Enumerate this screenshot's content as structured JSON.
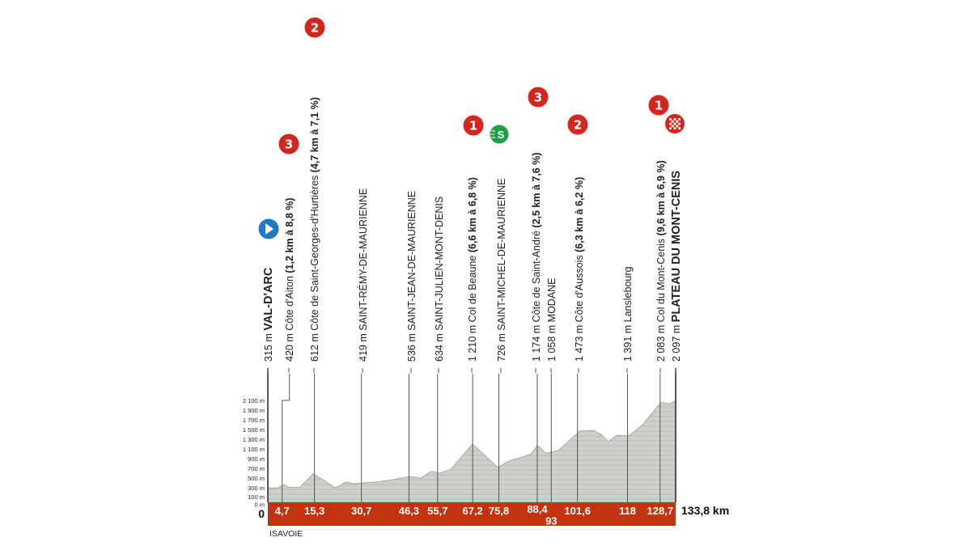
{
  "chart_data": {
    "type": "area",
    "title": "",
    "xlabel": "",
    "ylabel": "",
    "x_unit": "km",
    "xlim": [
      0,
      133.8
    ],
    "ylim": [
      0,
      2100
    ],
    "grid": false,
    "colors": {
      "profile_fill": "#cfcfcc",
      "profile_stroke": "#9a9a98",
      "band": "#c4330f",
      "mountain_badge": "#d6251e",
      "start": "#1f7ac2",
      "sprint": "#1fa046"
    },
    "y_ticks": [
      "0 m",
      "100 m",
      "300 m",
      "500 m",
      "700 m",
      "900 m",
      "1 100 m",
      "1 300 m",
      "1 500 m",
      "1 700 m",
      "1 900 m",
      "2 100 m"
    ],
    "y_tick_values": [
      0,
      100,
      300,
      500,
      700,
      900,
      1100,
      1300,
      1500,
      1700,
      1900,
      2100
    ],
    "profile": [
      [
        0,
        300
      ],
      [
        3.3,
        295
      ],
      [
        5.1,
        370
      ],
      [
        6.9,
        310
      ],
      [
        10.5,
        310
      ],
      [
        14.9,
        590
      ],
      [
        19.3,
        420
      ],
      [
        22,
        300
      ],
      [
        23.8,
        350
      ],
      [
        25.5,
        420
      ],
      [
        28.2,
        380
      ],
      [
        30.9,
        400
      ],
      [
        36,
        420
      ],
      [
        40.4,
        460
      ],
      [
        46.6,
        530
      ],
      [
        50.2,
        500
      ],
      [
        53.7,
        640
      ],
      [
        56.4,
        600
      ],
      [
        60,
        680
      ],
      [
        67.2,
        1200
      ],
      [
        71.5,
        950
      ],
      [
        75.4,
        720
      ],
      [
        79.4,
        860
      ],
      [
        83.8,
        940
      ],
      [
        86.5,
        1000
      ],
      [
        88.4,
        1174
      ],
      [
        91.3,
        1010
      ],
      [
        95.3,
        1070
      ],
      [
        102.4,
        1470
      ],
      [
        106.9,
        1480
      ],
      [
        109.5,
        1390
      ],
      [
        111.8,
        1250
      ],
      [
        114.4,
        1380
      ],
      [
        118.4,
        1370
      ],
      [
        122.8,
        1590
      ],
      [
        129,
        2060
      ],
      [
        131.7,
        2030
      ],
      [
        133.8,
        2097
      ]
    ],
    "start_label": "0",
    "finish_label": "133,8 km",
    "region_label": "ISAVOIE",
    "points": [
      {
        "km": 0,
        "km_label": "",
        "elev": "315 m",
        "name": "VAL-D'ARC",
        "climb": "",
        "style": "big",
        "icon": "start-icon"
      },
      {
        "km": 4.7,
        "km_label": "4,7",
        "elev": "420 m",
        "name": "Côte d'Aiton",
        "climb": "(1,2 km à 8,8 %)",
        "style": "normal",
        "category": "3"
      },
      {
        "km": 15.3,
        "km_label": "15,3",
        "elev": "612 m",
        "name": "Côte de Saint-Georges-d'Hurtières",
        "climb": "(4,7 km à 7,1 %)",
        "style": "normal",
        "category": "2"
      },
      {
        "km": 30.7,
        "km_label": "30,7",
        "elev": "419 m",
        "name": "SAINT-RÉMY-DE-MAURIENNE",
        "climb": "",
        "style": "normal"
      },
      {
        "km": 46.3,
        "km_label": "46,3",
        "elev": "536 m",
        "name": "SAINT-JEAN-DE-MAURIENNE",
        "climb": "",
        "style": "normal"
      },
      {
        "km": 55.7,
        "km_label": "55,7",
        "elev": "634 m",
        "name": "SAINT-JULIEN-MONT-DENIS",
        "climb": "",
        "style": "normal"
      },
      {
        "km": 67.2,
        "km_label": "67,2",
        "elev": "1 210 m",
        "name": "Col de Beaune",
        "climb": "(6,6 km à 6,8 %)",
        "style": "normal",
        "category": "1"
      },
      {
        "km": 75.8,
        "km_label": "75,8",
        "elev": "726 m",
        "name": "SAINT-MICHEL-DE-MAURIENNE",
        "climb": "",
        "style": "normal",
        "icon": "sprint-icon",
        "icon_text": "S"
      },
      {
        "km": 88.4,
        "km_label": "88,4",
        "elev": "1 174 m",
        "name": "Côte de Saint-André",
        "climb": "(2,5 km à 7,6 %)",
        "style": "normal",
        "category": "3"
      },
      {
        "km": 93,
        "km_label": "93",
        "elev": "1 058 m",
        "name": "MODANE",
        "climb": "",
        "style": "normal"
      },
      {
        "km": 101.6,
        "km_label": "101,6",
        "elev": "1 473 m",
        "name": "Côte d'Aussois",
        "climb": "(6,3 km à 6,2 %)",
        "style": "normal",
        "category": "2"
      },
      {
        "km": 118,
        "km_label": "118",
        "elev": "1 391 m",
        "name": "Lanslebourg",
        "climb": "",
        "style": "normal"
      },
      {
        "km": 128.7,
        "km_label": "128,7",
        "elev": "2 083 m",
        "name": "Col du Mont-Cenis",
        "climb": "(9,6 km à 6,9 %)",
        "style": "normal",
        "category": "1"
      },
      {
        "km": 133.8,
        "km_label": "",
        "elev": "2 097 m",
        "name": "PLATEAU DU MONT-CENIS",
        "climb": "",
        "style": "big",
        "icon": "finish-icon"
      }
    ]
  }
}
